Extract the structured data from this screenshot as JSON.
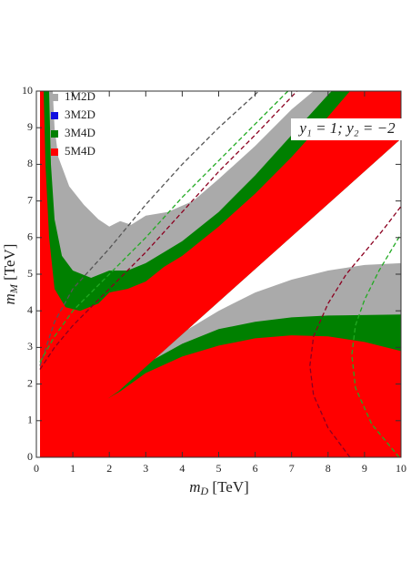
{
  "chart_data": {
    "type": "area",
    "xlabel": [
      "m",
      "D",
      " [TeV]"
    ],
    "ylabel": [
      "m",
      "M",
      " [TeV]"
    ],
    "annotation": "y₁ = 1; y₂ = −2",
    "xlim": [
      0,
      10
    ],
    "ylim": [
      0,
      10
    ],
    "xticks": [
      0,
      1,
      2,
      3,
      4,
      5,
      6,
      7,
      8,
      9,
      10
    ],
    "yticks": [
      0,
      1,
      2,
      3,
      4,
      5,
      6,
      7,
      8,
      9,
      10
    ],
    "legend": "top-left",
    "series": [
      {
        "name": "1M2D",
        "color": "#aaaaaa",
        "x": [
          0.1,
          0.1,
          0.45,
          0.5,
          0.6,
          0.9,
          1.3,
          1.7,
          2.0,
          2.3,
          2.6,
          3.0,
          3.6,
          4.3,
          5.0,
          6.0,
          7.0,
          7.6,
          10,
          10,
          2.25,
          3.0,
          4.0,
          5.0,
          6.0,
          7.0,
          8.0,
          9.0,
          10,
          10
        ],
        "y": [
          0,
          10,
          10,
          9,
          8.2,
          7.4,
          6.9,
          6.5,
          6.3,
          6.45,
          6.35,
          6.6,
          6.7,
          7.0,
          7.6,
          8.5,
          9.5,
          10,
          10,
          8.7,
          1.8,
          2.6,
          3.4,
          4.0,
          4.5,
          4.85,
          5.1,
          5.25,
          5.3,
          0
        ]
      },
      {
        "name": "3M2D",
        "color": "#1010e0",
        "x": [],
        "y": []
      },
      {
        "name": "3M4D",
        "color": "#008000",
        "x": [
          0.1,
          0.1,
          0.35,
          0.4,
          0.5,
          0.7,
          1.0,
          1.5,
          2.0,
          2.5,
          3.0,
          3.5,
          4.0,
          5.0,
          6.0,
          7.0,
          8.0,
          8.1,
          10,
          10,
          2.25,
          1.85,
          2.3,
          3.0,
          4.0,
          5.0,
          6.0,
          7.0,
          8.0,
          10,
          10
        ],
        "y": [
          0,
          10,
          10,
          8,
          6.5,
          5.5,
          5.1,
          4.9,
          5.1,
          5.1,
          5.3,
          5.6,
          5.9,
          6.7,
          7.7,
          8.8,
          9.9,
          10,
          10,
          8.7,
          1.8,
          1.5,
          1.85,
          2.55,
          3.1,
          3.5,
          3.7,
          3.82,
          3.87,
          3.9,
          0
        ]
      },
      {
        "name": "5M4D",
        "color": "#ff0000",
        "x": [
          0.1,
          0.1,
          0.2,
          0.25,
          0.35,
          0.5,
          0.8,
          1.2,
          1.7,
          2.0,
          2.5,
          3.0,
          3.5,
          4.0,
          5.0,
          6.0,
          7.0,
          8.0,
          8.6,
          10,
          10,
          2.25,
          1.95,
          2.3,
          3.0,
          4.0,
          5.0,
          6.0,
          7.0,
          8.0,
          9.0,
          10,
          10
        ],
        "y": [
          0,
          10,
          10,
          8,
          6,
          4.6,
          4.1,
          4.0,
          4.2,
          4.5,
          4.6,
          4.8,
          5.2,
          5.5,
          6.3,
          7.2,
          8.2,
          9.3,
          10,
          10,
          8.7,
          1.8,
          1.6,
          1.8,
          2.3,
          2.75,
          3.05,
          3.25,
          3.33,
          3.3,
          3.15,
          2.9,
          0
        ]
      },
      {
        "color": "#555555",
        "dash": true,
        "x": [
          0.1,
          0.5,
          1,
          2,
          3,
          4,
          5,
          6.1
        ],
        "y": [
          2.5,
          3.7,
          4.6,
          5.7,
          6.9,
          8.0,
          9.0,
          10
        ]
      },
      {
        "color": "#22aa22",
        "dash": true,
        "x": [
          0.1,
          0.5,
          1,
          2,
          3,
          4,
          5,
          6,
          6.9
        ],
        "y": [
          2.6,
          3.3,
          4.0,
          5.0,
          6.0,
          7.1,
          8.1,
          9.1,
          10
        ]
      },
      {
        "color": "#8b0020",
        "dash": true,
        "x": [
          0.1,
          0.5,
          1,
          2,
          3,
          4,
          5,
          6,
          7.15
        ],
        "y": [
          2.4,
          3.0,
          3.6,
          4.6,
          5.6,
          6.7,
          7.8,
          8.8,
          10
        ]
      },
      {
        "color": "#8b0020",
        "dash": true,
        "x": [
          8.6,
          8.0,
          7.6,
          7.5,
          7.6,
          8.0,
          8.5,
          9.0,
          9.5,
          10
        ],
        "y": [
          0,
          0.8,
          1.7,
          2.5,
          3.3,
          4.2,
          5.0,
          5.6,
          6.2,
          6.85
        ]
      },
      {
        "color": "#22aa22",
        "dash": true,
        "x": [
          9.95,
          9.2,
          8.75,
          8.65,
          8.75,
          9.0,
          9.4,
          10
        ],
        "y": [
          0,
          0.9,
          1.9,
          2.8,
          3.6,
          4.3,
          5.1,
          6.1
        ]
      }
    ]
  }
}
